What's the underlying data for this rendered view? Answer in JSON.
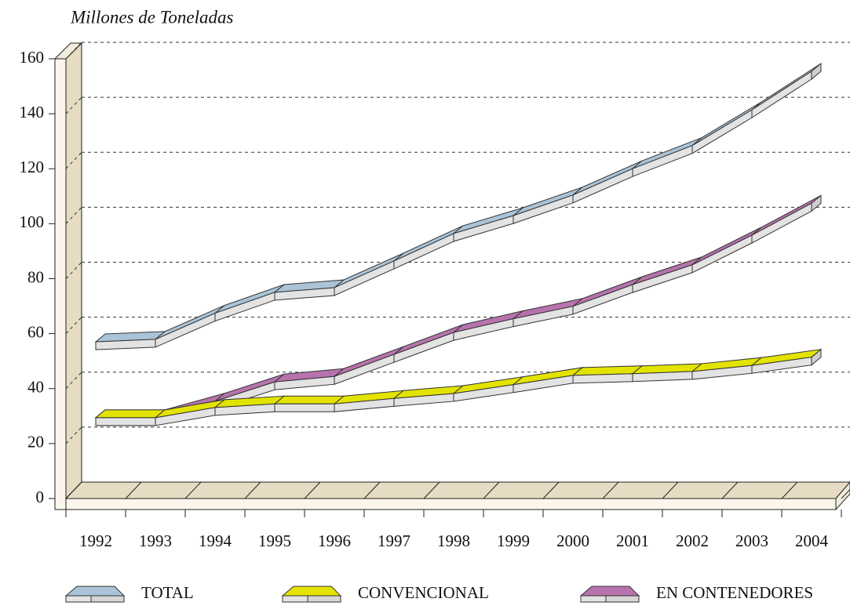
{
  "chart_data": {
    "type": "line3d",
    "y_label": "Millones de Toneladas",
    "categories": [
      "1992",
      "1993",
      "1994",
      "1995",
      "1996",
      "1997",
      "1998",
      "1999",
      "2000",
      "2001",
      "2002",
      "2003",
      "2004"
    ],
    "series": [
      {
        "name": "TOTAL",
        "color": "#aac3d6",
        "values": [
          55.6,
          56.5,
          66,
          73.6,
          75.3,
          85,
          95,
          101.5,
          109,
          118.6,
          127,
          140,
          154
        ]
      },
      {
        "name": "EN CONTENEDORES",
        "color": "#b673ad",
        "values": [
          28,
          28,
          34,
          41,
          43,
          51,
          59,
          64,
          68.5,
          76.4,
          83.6,
          94.4,
          106
        ]
      },
      {
        "name": "CONVENCIONAL",
        "color": "#e3e300",
        "values": [
          28,
          28,
          31.7,
          33,
          33,
          35,
          36.8,
          40,
          43.4,
          44,
          44.8,
          47,
          50
        ]
      }
    ],
    "legend_order": [
      0,
      2,
      1
    ],
    "ylim": [
      0,
      160
    ],
    "yticks": [
      0,
      20,
      40,
      60,
      80,
      100,
      120,
      140,
      160
    ],
    "grid": true
  }
}
